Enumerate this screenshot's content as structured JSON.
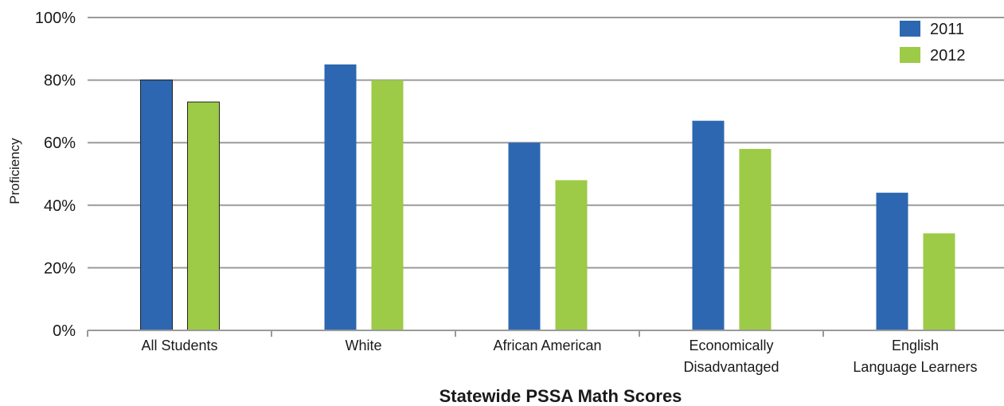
{
  "chart_data": {
    "type": "bar",
    "title": "Statewide PSSA Math Scores",
    "ylabel": "Proficiency",
    "xlabel": "",
    "ylim": [
      0,
      100
    ],
    "yticks": [
      "0%",
      "20%",
      "40%",
      "60%",
      "80%",
      "100%"
    ],
    "ytick_values": [
      0,
      20,
      40,
      60,
      80,
      100
    ],
    "categories": [
      [
        "All Students"
      ],
      [
        "White"
      ],
      [
        "African American"
      ],
      [
        "Economically",
        "Disadvantaged"
      ],
      [
        "English",
        "Language Learners"
      ]
    ],
    "series": [
      {
        "name": "2011",
        "color": "#2d67b1",
        "values": [
          80,
          85,
          60,
          67,
          44
        ]
      },
      {
        "name": "2012",
        "color": "#9dca47",
        "values": [
          73,
          80,
          48,
          58,
          31
        ]
      }
    ],
    "grid": true,
    "legend_position": "top-right"
  }
}
